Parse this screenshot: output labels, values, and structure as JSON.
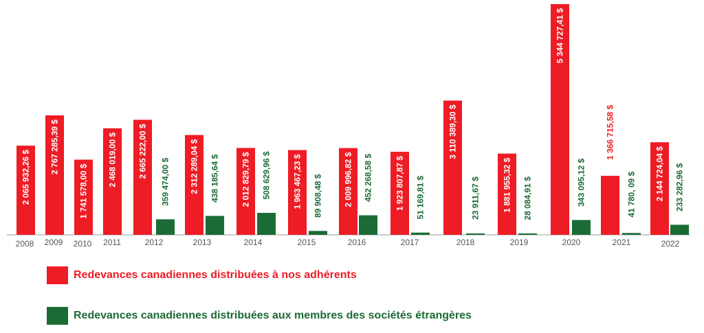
{
  "chart_data": {
    "type": "bar",
    "categories": [
      "2008",
      "2009",
      "2010",
      "2011",
      "2012",
      "2013",
      "2014",
      "2015",
      "2016",
      "2017",
      "2018",
      "2019",
      "2020",
      "2021",
      "2022"
    ],
    "series": [
      {
        "name": "Redevances canadiennes distribuées à nos adhérents",
        "color": "#ee1c25",
        "values": [
          2065932.26,
          2767285.39,
          1741578.0,
          2468019.0,
          2665222.0,
          2312289.04,
          2012829.79,
          1963467.23,
          2009996.82,
          1923807.87,
          3110389.3,
          1881955.32,
          5344727.41,
          1366715.58,
          2144724.04
        ],
        "labels": [
          "2 065 932,26 $",
          "2 767 285,39 $",
          "1 741 578,00 $",
          "2 468 019,00 $",
          "2 665 222,00 $",
          "2 312 289,04 $",
          "2 012 829,79 $",
          "1 963 467,23 $",
          "2 009 996,82 $",
          "1 923 807,87 $",
          "3 110 389,30 $",
          "1 881 955,32 $",
          "5 344 727,41 $",
          "1 366 715,58 $",
          "2 144 724,04 $"
        ]
      },
      {
        "name": "Redevances canadiennes distribuées aux membres des sociétés étrangères",
        "color": "#1b6b35",
        "values": [
          null,
          null,
          null,
          null,
          359474.0,
          438185.64,
          508629.96,
          89908.48,
          452268.58,
          51169.81,
          23911.67,
          28084.91,
          343095.12,
          41780.09,
          233282.96
        ],
        "labels": [
          "",
          "",
          "",
          "",
          "359 474,00 $",
          "438 185,64 $",
          "508 629,96 $",
          "89 908,48 $",
          "452 268,58 $",
          "51 169,81 $",
          "23 911,67 $",
          "28 084,91 $",
          "343 095,12 $",
          "41 780, 09 $",
          "233 282,96 $"
        ]
      }
    ],
    "ylim": [
      0,
      5344727.41
    ],
    "grid": false,
    "legend_position": "bottom-left"
  },
  "legend": {
    "red_label": "Redevances canadiennes distribuées à nos adhérents",
    "green_label": "Redevances canadiennes distribuées aux membres des sociétés étrangères"
  }
}
